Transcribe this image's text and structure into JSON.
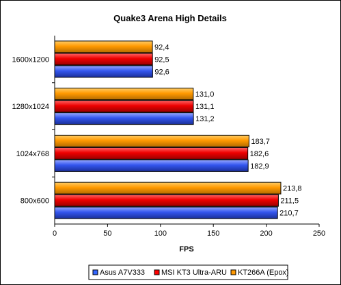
{
  "chart_data": {
    "type": "bar",
    "orientation": "horizontal",
    "title": "Quake3 Arena High Details",
    "xlabel": "FPS",
    "ylabel": "",
    "xlim": [
      0,
      250
    ],
    "xticks": [
      0,
      50,
      100,
      150,
      200,
      250
    ],
    "grid": false,
    "legend_position": "bottom",
    "categories": [
      "1600x1200",
      "1280x1024",
      "1024x768",
      "800x600"
    ],
    "series": [
      {
        "name": "KT266A (Epox)",
        "color": "#ff9900",
        "values": [
          92.4,
          131.0,
          183.7,
          213.8
        ],
        "labels": [
          "92,4",
          "131,0",
          "183,7",
          "213,8"
        ]
      },
      {
        "name": "MSI KT3 Ultra-ARU",
        "color": "#ff0000",
        "values": [
          92.5,
          131.1,
          182.6,
          211.5
        ],
        "labels": [
          "92,5",
          "131,1",
          "182,6",
          "211,5"
        ]
      },
      {
        "name": "Asus A7V333",
        "color": "#3366ff",
        "values": [
          92.6,
          131.2,
          182.9,
          210.7
        ],
        "labels": [
          "92,6",
          "131,2",
          "182,9",
          "210,7"
        ]
      }
    ],
    "legend_order": [
      "Asus A7V333",
      "MSI KT3 Ultra-ARU",
      "KT266A (Epox)"
    ]
  }
}
